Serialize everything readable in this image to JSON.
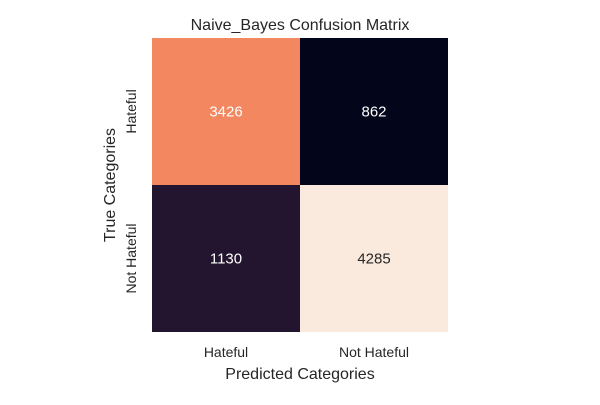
{
  "chart_data": {
    "type": "heatmap",
    "title": "Naive_Bayes Confusion Matrix",
    "xlabel": "Predicted Categories",
    "ylabel": "True Categories",
    "x_categories": [
      "Hateful",
      "Not Hateful"
    ],
    "y_categories": [
      "Hateful",
      "Not Hateful"
    ],
    "values": [
      [
        3426,
        862
      ],
      [
        1130,
        4285
      ]
    ],
    "cell_colors": [
      [
        "#f3875f",
        "#03051a"
      ],
      [
        "#23142f",
        "#faeade"
      ]
    ],
    "annotation_colors": [
      [
        "#ffffff",
        "#ffffff"
      ],
      [
        "#ffffff",
        "#262626"
      ]
    ],
    "colorbar": false
  }
}
